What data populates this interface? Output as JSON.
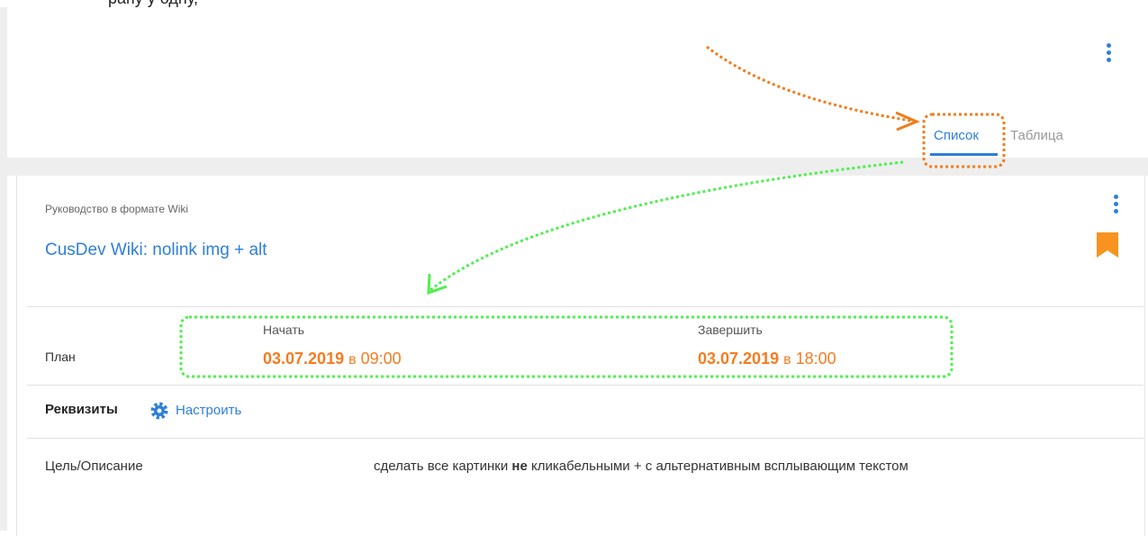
{
  "top_text": "рапу у одну,",
  "tabs": [
    "Список",
    "Таблица"
  ],
  "card": {
    "type_label": "Руководство в формате Wiki",
    "title": "CusDev Wiki: nolink img + alt",
    "plan": {
      "label": "План",
      "start": {
        "label": "Начать",
        "date": "03.07.2019",
        "at": "в",
        "time": "09:00"
      },
      "end": {
        "label": "Завершить",
        "date": "03.07.2019",
        "at": "в",
        "time": "18:00"
      }
    },
    "requisites": {
      "title": "Реквизиты",
      "configure": "Настроить"
    },
    "fields": [
      {
        "name": "Цель/Описание",
        "value_parts": [
          "сделать все картинки ",
          "не",
          " кликабельными + с альтернативным всплывающим текстом"
        ]
      }
    ]
  }
}
